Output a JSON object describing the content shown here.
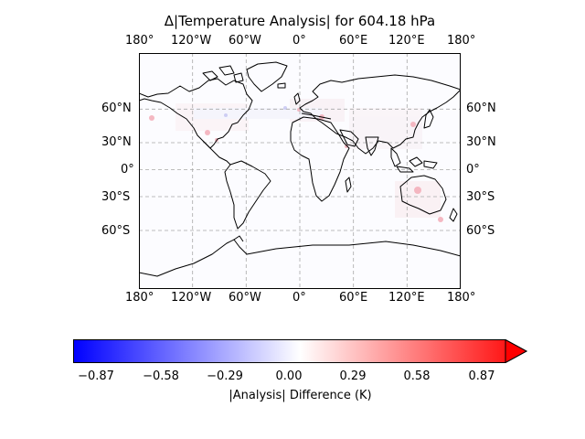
{
  "title": "Δ|Temperature Analysis| for 604.18 hPa",
  "lon_ticks": [
    "180°",
    "120°W",
    "60°W",
    "0°",
    "60°E",
    "120°E",
    "180°"
  ],
  "lat_ticks": [
    "60°N",
    "30°N",
    "0°",
    "30°S",
    "60°S"
  ],
  "colorbar": {
    "label": "|Analysis| Difference (K)",
    "ticks": [
      "−0.87",
      "−0.58",
      "−0.29",
      "0.00",
      "0.29",
      "0.58",
      "0.87"
    ],
    "colors": {
      "min": "#0000ff",
      "mid": "#ffffff",
      "max": "#ff0000"
    },
    "extend": "max"
  },
  "map": {
    "projection": "PlateCarree",
    "gridlines": "dashed",
    "coastline_color": "#000000",
    "field": "small positive differences over land and coasts, near zero over oceans"
  }
}
